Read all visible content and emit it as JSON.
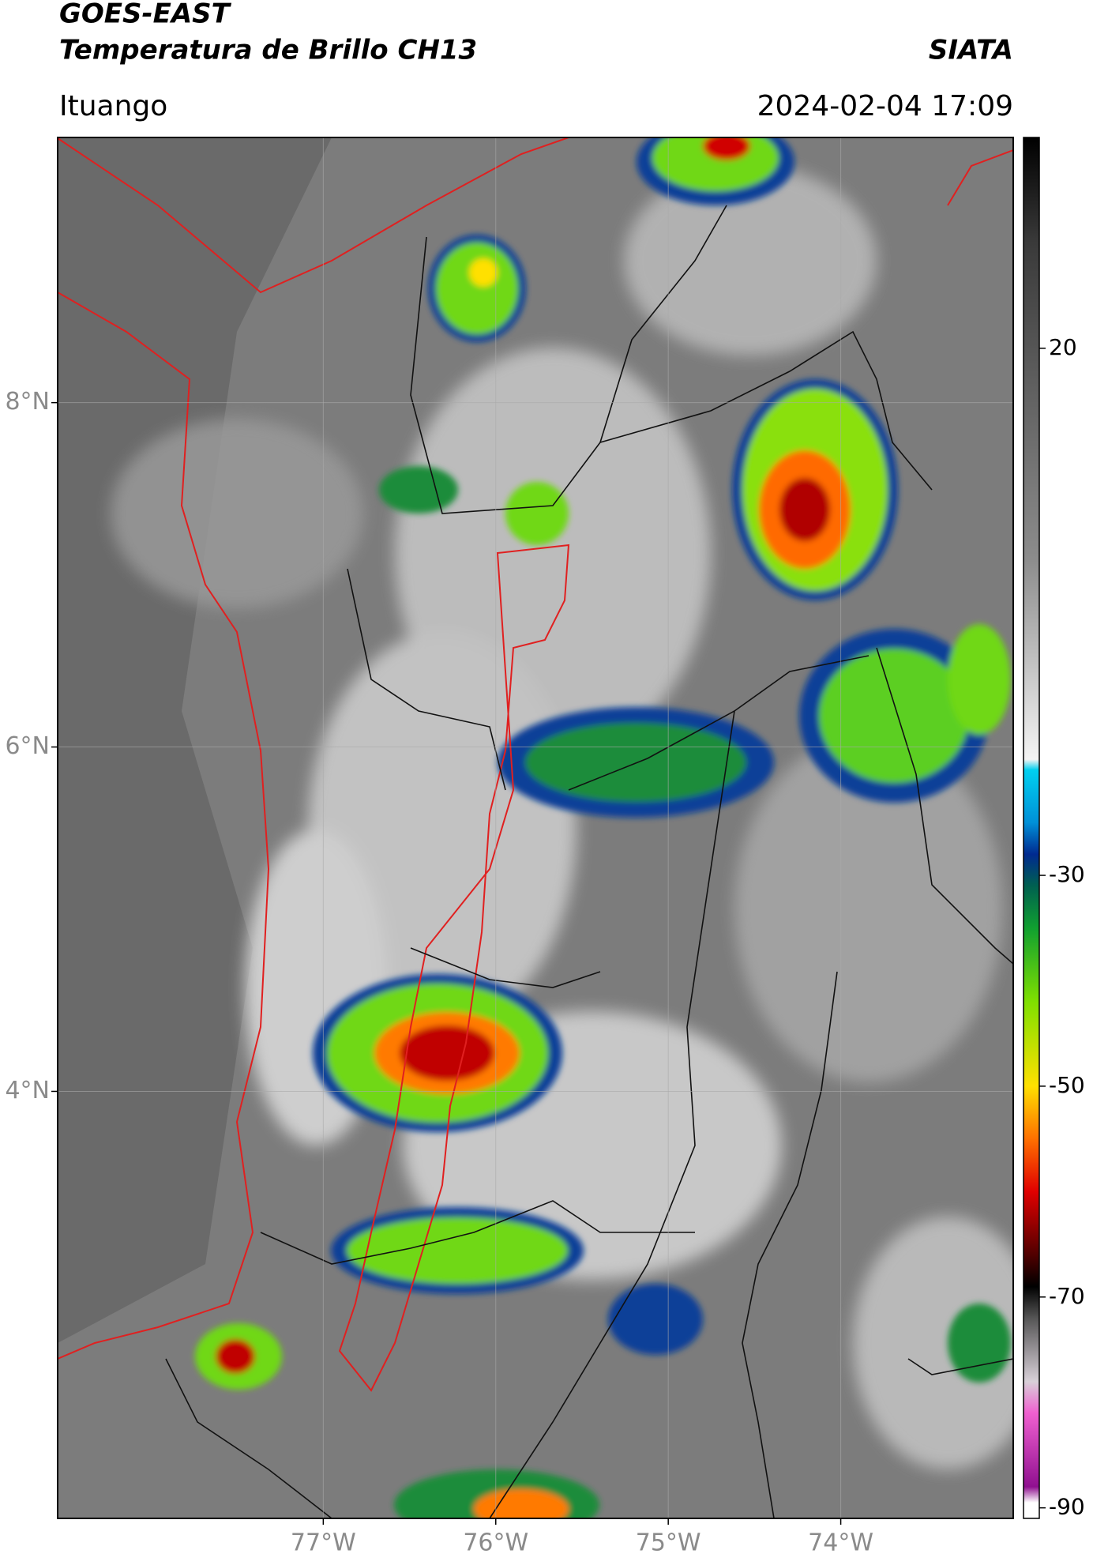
{
  "header": {
    "title": "GOES-EAST",
    "subtitle": "Temperatura de Brillo CH13",
    "source": "SIATA",
    "location": "Ituango",
    "datetime": "2024-02-04 17:09"
  },
  "map": {
    "latlim": [
      1.52,
      9.54
    ],
    "lonlim": [
      -78.54,
      -73.0
    ],
    "latticks": [
      {
        "value": 8,
        "label": "8°N"
      },
      {
        "value": 6,
        "label": "6°N"
      },
      {
        "value": 4,
        "label": "4°N"
      }
    ],
    "lonticks": [
      {
        "value": -77,
        "label": "77°W"
      },
      {
        "value": -76,
        "label": "76°W"
      },
      {
        "value": -75,
        "label": "75°W"
      },
      {
        "value": -74,
        "label": "74°W"
      }
    ],
    "grid": true
  },
  "colorbar": {
    "lim": [
      -91,
      40
    ],
    "ticks": [
      20,
      -30,
      -50,
      -70,
      -90
    ],
    "colormap": [
      {
        "value": 40,
        "color": "#000000"
      },
      {
        "value": 30,
        "color": "#3a3a3a"
      },
      {
        "value": 0,
        "color": "#8c8c8c"
      },
      {
        "value": -19,
        "color": "#f4f4f4"
      },
      {
        "value": -20,
        "color": "#00d0f0"
      },
      {
        "value": -25,
        "color": "#0090d8"
      },
      {
        "value": -28,
        "color": "#002a90"
      },
      {
        "value": -31,
        "color": "#006050"
      },
      {
        "value": -35,
        "color": "#10a030"
      },
      {
        "value": -42,
        "color": "#80e000"
      },
      {
        "value": -50,
        "color": "#ffe000"
      },
      {
        "value": -55,
        "color": "#ff7000"
      },
      {
        "value": -60,
        "color": "#e00000"
      },
      {
        "value": -66,
        "color": "#500000"
      },
      {
        "value": -69,
        "color": "#000000"
      },
      {
        "value": -72,
        "color": "#555555"
      },
      {
        "value": -78,
        "color": "#d8d0d8"
      },
      {
        "value": -81,
        "color": "#f060d0"
      },
      {
        "value": -88,
        "color": "#901090"
      },
      {
        "value": -89.5,
        "color": "#ffffff"
      }
    ]
  }
}
